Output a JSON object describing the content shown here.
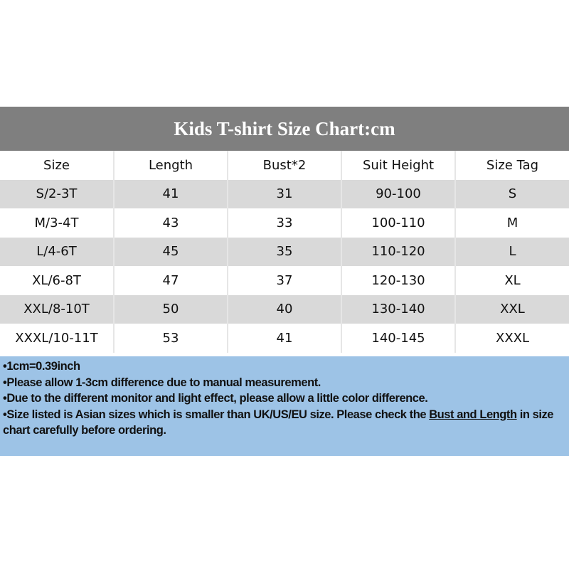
{
  "title": "Kids T-shirt Size Chart:cm",
  "headers": [
    "Size",
    "Length",
    "Bust*2",
    "Suit Height",
    "Size Tag"
  ],
  "rows": [
    [
      "S/2-3T",
      "41",
      "31",
      "90-100",
      "S"
    ],
    [
      "M/3-4T",
      "43",
      "33",
      "100-110",
      "M"
    ],
    [
      "L/4-6T",
      "45",
      "35",
      "110-120",
      "L"
    ],
    [
      "XL/6-8T",
      "47",
      "37",
      "120-130",
      "XL"
    ],
    [
      "XXL/8-10T",
      "50",
      "40",
      "130-140",
      "XXL"
    ],
    [
      "XXXL/10-11T",
      "53",
      "41",
      "140-145",
      "XXXL"
    ]
  ],
  "notes": {
    "n1": "•1cm=0.39inch",
    "n2": "•Please allow 1-3cm difference due to manual measurement.",
    "n3": "•Due to the different monitor and light effect, please allow a little color difference.",
    "n4_pre": "•Size listed is Asian sizes which is smaller than UK/US/EU size. Please check the ",
    "n4_underline": "Bust and Length",
    "n4_post": " in size chart carefully before ordering."
  },
  "colors": {
    "title_bg": "#7f7f7f",
    "row_alt": "#d9d9d9",
    "notes_bg": "#9dc3e6"
  }
}
